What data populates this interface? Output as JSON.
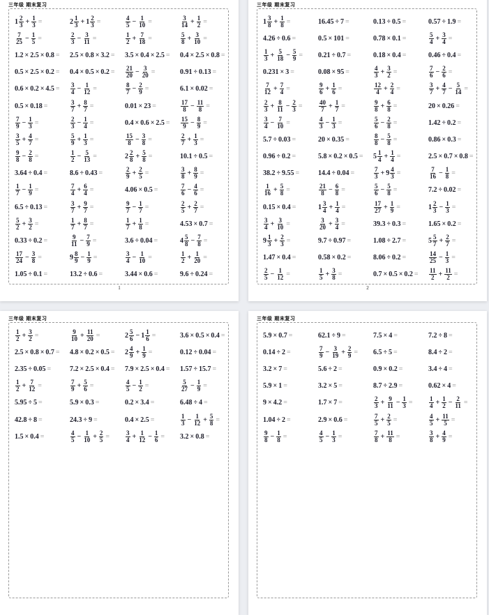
{
  "pages": [
    {
      "header": "三年级  期末复习",
      "number": "1",
      "rows": [
        [
          "1_2/3 + 1/3 =",
          "2_1/3 + 1_2/3 =",
          "4/5 − 1/10 =",
          "3/14 + 1/2 ="
        ],
        [
          "7/25 − 1/5 =",
          "2/3 − 3/11 =",
          "1/2 + 7/18 =",
          "5/8 + 3/10 ="
        ],
        [
          "1.2 × 2.5 × 0.8 =",
          "2.5 × 0.8 × 3.2 =",
          "3.5 × 0.4 × 2.5 =",
          "0.4 × 2.5 × 0.8 ="
        ],
        [
          "0.5 × 2.5 × 0.2 =",
          "0.4 × 0.5 × 0.2 =",
          "21/20 − 3/20 =",
          "0.91 ÷ 0.13 ="
        ],
        [
          "0.6 × 0.2 × 4.5 =",
          "3/4 − 1/12 =",
          "8/7 − 2/9 =",
          "6.1 × 0.02 ="
        ],
        [
          "0.5 × 0.18 =",
          "3/7 + 8/7 =",
          "0.01 × 23 =",
          "17/8 − 11/8 ="
        ],
        [
          "7/9 − 1/3 =",
          "2/3 − 1/4 =",
          "0.4 × 0.6 × 2.5 =",
          "15/9 − 8/9 ="
        ],
        [
          "3/5 + 4/7 =",
          "5/9 + 1/3 =",
          "15/8 − 3/8 =",
          "2/7 + 1/3 ="
        ],
        [
          "9/8 − 2/8 =",
          "1/2 − 5/13 =",
          "2_2/8 + 5/8 =",
          "10.1 ÷ 0.5 ="
        ],
        [
          "3.64 ÷ 0.4 =",
          "8.6 ÷ 0.43 =",
          "2/9 + 2/5 =",
          "3/8 + 8/9 ="
        ],
        [
          "1/7 − 1/9 =",
          "7/4 + 6/4 =",
          "4.06 × 0.5 =",
          "7/6 − 4/6 ="
        ],
        [
          "6.5 ÷ 0.13 =",
          "3/7 + 9/7 =",
          "9/7 − 1/7 =",
          "2/5 + 2/7 ="
        ],
        [
          "5/2 + 3/2 =",
          "1/7 + 8/7 =",
          "1/7 + 1/8 =",
          "4.53 × 0.7 ="
        ],
        [
          "0.33 ÷ 0.2 =",
          "9/11 − 7/9 =",
          "3.6 ÷ 0.04 =",
          "4_5/8 − 7/8 ="
        ],
        [
          "17/24 − 3/8 =",
          "9_8/9 − 1/9 =",
          "3/4 − 1/10 =",
          "1/2 + 1/20 ="
        ],
        [
          "1.05 ÷ 0.1 =",
          "13.2 ÷ 0.6 =",
          "3.44 × 0.6 =",
          "9.6 ÷ 0.24 ="
        ]
      ]
    },
    {
      "header": "三年级  期末复习",
      "number": "2",
      "rows": [
        [
          "1_3/8 + 1/8 =",
          "16.45 ÷ 7 =",
          "0.13 ÷ 0.5 =",
          "0.57 ÷ 1.9 ="
        ],
        [
          "4.26 ÷ 0.6 =",
          "0.5 × 101 =",
          "0.78 × 0.1 =",
          "5/4 + 3/4 ="
        ],
        [
          "1/3 + 5/18 − 5/9 =",
          "0.21 ÷ 0.7 =",
          "0.18 × 0.4 =",
          "0.46 ÷ 0.4 ="
        ],
        [
          "0.231 × 3 =",
          "0.08 × 95 =",
          "4/3 + 3/2 =",
          "7/6 − 2/6 ="
        ],
        [
          "7/12 + 7/4 =",
          "9/6 + 1/6 =",
          "12/4 + 2/4 =",
          "3/7 + 4/7 − 5/14 ="
        ],
        [
          "2/3 + 8/11 − 2/3 =",
          "40/7 + 1/7 =",
          "9/8 + 6/8 =",
          "20 × 0.26 ="
        ],
        [
          "3/4 − 7/10 =",
          "4/3 − 1/3 =",
          "5/6 − 2/8 =",
          "1.42 ÷ 0.2 ="
        ],
        [
          "5.7 ÷ 0.03 =",
          "20 × 0.35 =",
          "8/8 − 5/8 =",
          "0.86 × 0.3 ="
        ],
        [
          "0.96 ÷ 0.2 =",
          "5.8 × 0.2 × 0.5 =",
          "5_1/4 + 1/4 =",
          "2.5 × 0.7 × 0.8 ="
        ],
        [
          "38.2 ÷ 9.55 =",
          "14.4 ÷ 0.04 =",
          "7/3 + 9_4/3 =",
          "7/16 − 1/8 ="
        ],
        [
          "1/16 + 5/8 =",
          "21/8 − 6/8 =",
          "5/6 − 5/8 =",
          "7.2 ÷ 0.02 ="
        ],
        [
          "0.15 × 0.4 =",
          "1_3/4 + 1/4 =",
          "17/27 + 1/9 =",
          "1_2/3 − 1/3 ="
        ],
        [
          "3/4 + 3/10 =",
          "3/20 + 3/4 =",
          "39.3 ÷ 0.3 =",
          "1.65 × 0.2 ="
        ],
        [
          "9_1/3 + 2/3 =",
          "9.7 ÷ 0.97 =",
          "1.08 ÷ 2.7 =",
          "5_5/7 + 2/7 ="
        ],
        [
          "1.47 × 0.4 =",
          "0.58 × 0.2 =",
          "8.06 ÷ 0.2 =",
          "14/25 − 1/3 ="
        ],
        [
          "2/5 − 1/12 =",
          "1/5 + 3/8 =",
          "0.7 × 0.5 × 0.2 =",
          "11/2 + 11/2 ="
        ]
      ]
    },
    {
      "header": "三年级  期末复习",
      "number": "",
      "rows": [
        [
          "1/2 + 3/2 =",
          "9/10 + 11/20 =",
          "2_5/6 − 1_1/6 =",
          "3.6 × 0.5 × 0.4 ="
        ],
        [
          "2.5 × 0.8 × 0.7 =",
          "4.8 × 0.2 × 0.5 =",
          "2_4/9 + 1/9 =",
          "0.12 ÷ 0.04 ="
        ],
        [
          "2.35 ÷ 0.05 =",
          "7.2 × 2.5 × 0.4 =",
          "7.9 × 2.5 × 0.4 =",
          "1.57 ÷ 15.7 ="
        ],
        [
          "1/2 + 7/12 =",
          "7/9 + 5/6 =",
          "4/5 − 1/2 =",
          "5/27 − 1/9 ="
        ],
        [
          "5.95 ÷ 5 =",
          "5.9 × 0.3 =",
          "0.2 × 3.4 =",
          "6.48 ÷ 4 ="
        ],
        [
          "42.8 ÷ 8 =",
          "24.3 ÷ 9 =",
          "0.4 × 2.5 =",
          "1/3 − 1/12 + 5/8 ="
        ],
        [
          "1.5 × 0.4 =",
          "4/5 − 1/10 + 2/5 =",
          "3/4 + 1/12 − 1/6 =",
          "3.2 × 0.8 ="
        ]
      ]
    },
    {
      "header": "三年级  期末复习",
      "number": "",
      "rows": [
        [
          "5.9 × 0.7 =",
          "62.1 ÷ 9 =",
          "7.5 × 4 =",
          "7.2 ÷ 8 ="
        ],
        [
          "0.14 ÷ 2 =",
          "7/9 − 3/19 + 2/9 =",
          "6.5 ÷ 5 =",
          "8.4 ÷ 2 ="
        ],
        [
          "3.2 × 7 =",
          "5.6 ÷ 2 =",
          "0.9 × 0.2 =",
          "3.4 ÷ 4 ="
        ],
        [
          "5.9 × 1 =",
          "3.2 × 5 =",
          "8.7 ÷ 2.9 =",
          "0.62 × 4 ="
        ],
        [
          "9 × 4.2 =",
          "1.7 × 7 =",
          "2/3 + 9/11 − 1/3 =",
          "1/4 + 1/2 − 2/11 ="
        ],
        [
          "1.04 ÷ 2 =",
          "2.9 × 0.6 =",
          "7/5 + 2/5 =",
          "4/5 + 11/5 ="
        ],
        [
          "9/8 − 1/8 =",
          "4/5 − 1/3 =",
          "7/8 + 11/8 =",
          "3/8 + 4/9 ="
        ]
      ]
    }
  ]
}
